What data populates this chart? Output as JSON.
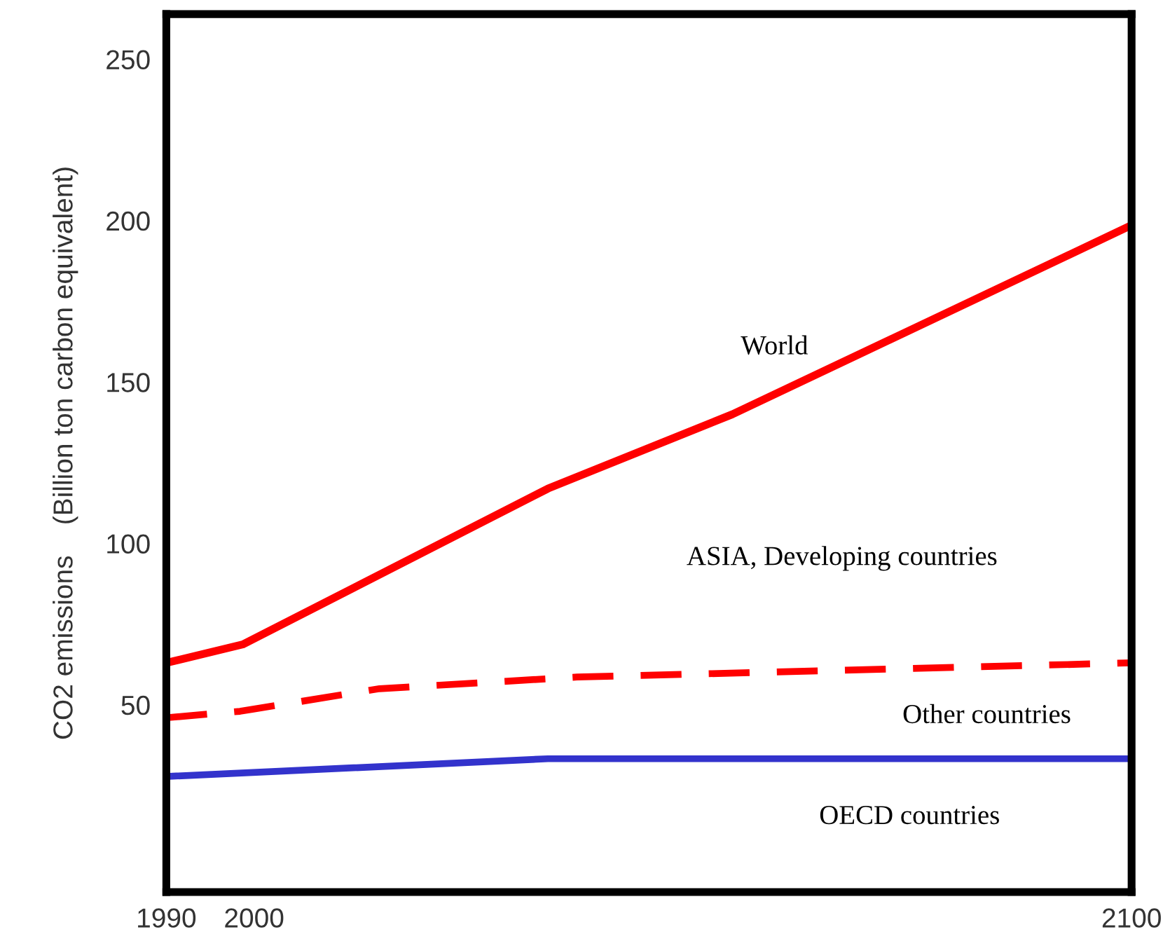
{
  "chart_data": {
    "type": "line",
    "ylabel": "CO2 emissions    (Billion ton carbon equivalent)",
    "xlim": [
      1990,
      2100
    ],
    "ylim": [
      -8,
      264
    ],
    "xticks": [
      1990,
      2000,
      2100
    ],
    "yticks": [
      50,
      100,
      150,
      200,
      250
    ],
    "grid": false,
    "legend": false,
    "marker": "none",
    "series": [
      {
        "color": "#ff0000",
        "line_style": "solid",
        "x": [
          1990,
          1998.7,
          2033.5,
          2054.5,
          2100
        ],
        "values": [
          63,
          68.7,
          117,
          140,
          198.6
        ]
      },
      {
        "color": "#ff0000",
        "line_style": "dashed",
        "x": [
          1990,
          1998.4,
          2014.3,
          2036.8,
          2100
        ],
        "values": [
          46,
          48,
          55,
          58.6,
          63
        ]
      },
      {
        "color": "#3333cc",
        "line_style": "solid",
        "x": [
          1990,
          2033.5,
          2100
        ],
        "values": [
          27.8,
          33.3,
          33.3
        ]
      }
    ],
    "annotations": [
      "World",
      "ASIA, Developing countries",
      "Other countries",
      "OECD countries"
    ]
  }
}
